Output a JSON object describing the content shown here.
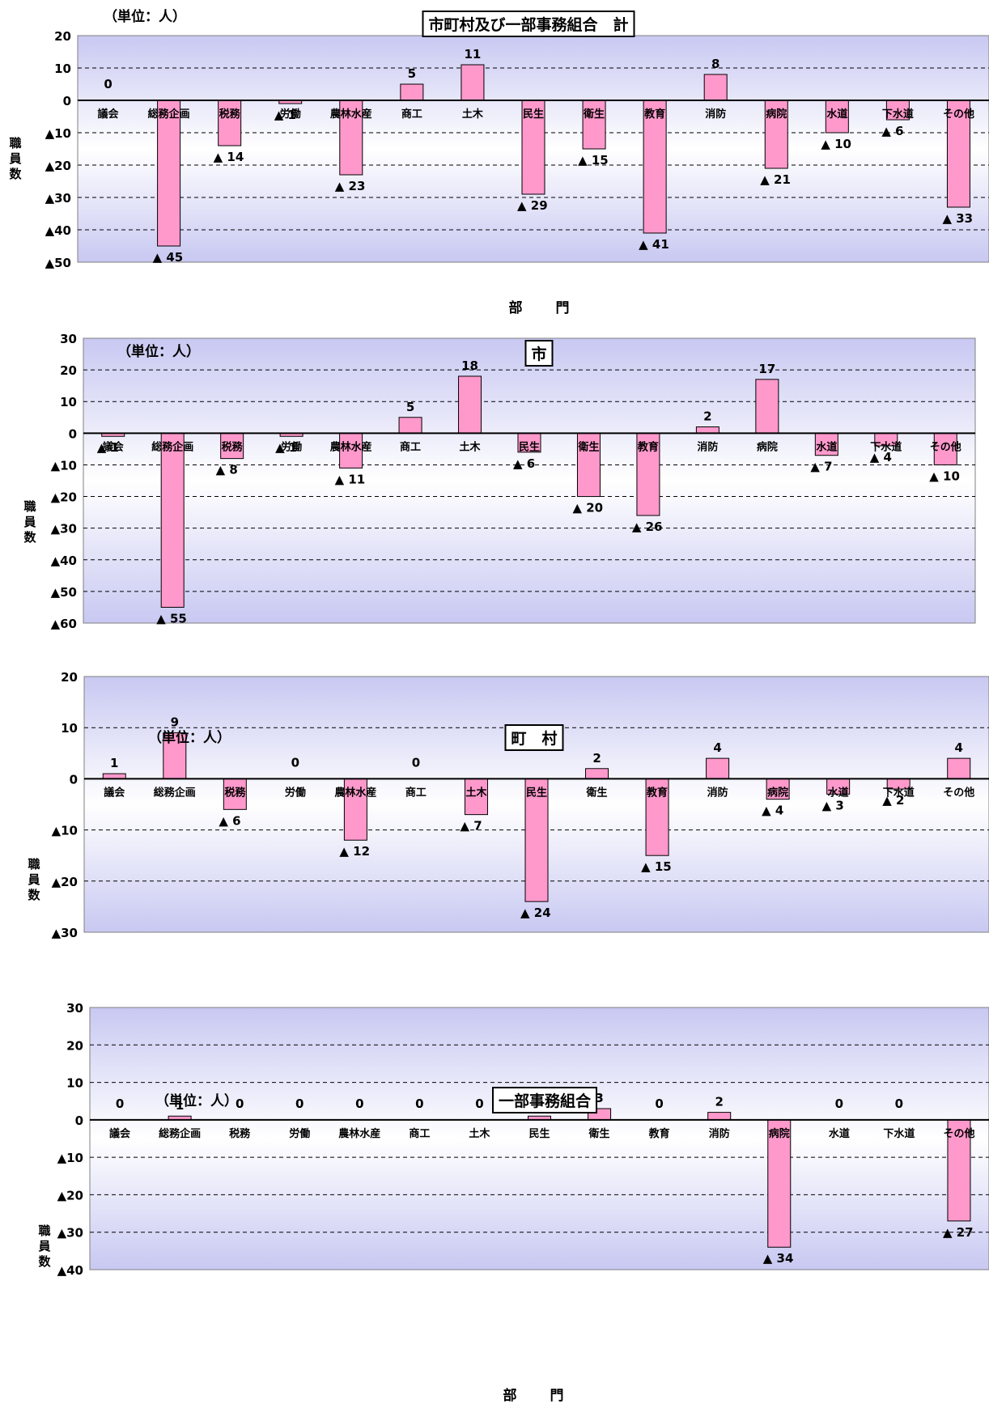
{
  "chart_data": [
    {
      "type": "bar",
      "title": "市町村及び一部事務組合　計",
      "unit": "（単位：人）",
      "xlabel": "部　門",
      "ylabel": "職員数",
      "ylim": [
        -50,
        20
      ],
      "yticks": [
        20,
        10,
        0,
        -10,
        -20,
        -30,
        -40,
        -50
      ],
      "ytick_labels": [
        "20",
        "10",
        "0",
        "▲10",
        "▲20",
        "▲30",
        "▲40",
        "▲50"
      ],
      "categories": [
        "議会",
        "総務企画",
        "税務",
        "労働",
        "農林水産",
        "商工",
        "土木",
        "民生",
        "衛生",
        "教育",
        "消防",
        "病院",
        "水道",
        "下水道",
        "その他"
      ],
      "values": [
        0,
        -45,
        -14,
        -1,
        -23,
        5,
        11,
        -29,
        -15,
        -41,
        8,
        -21,
        -10,
        -6,
        -33
      ],
      "value_labels": [
        "0",
        "▲ 45",
        "▲ 14",
        "▲ 1",
        "▲ 23",
        "5",
        "11",
        "▲ 29",
        "▲ 15",
        "▲ 41",
        "8",
        "▲ 21",
        "▲ 10",
        "▲ 6",
        "▲ 33"
      ]
    },
    {
      "type": "bar",
      "title": "市",
      "unit": "（単位：人）",
      "xlabel": "部　門",
      "ylabel": "職員数",
      "ylim": [
        -60,
        30
      ],
      "yticks": [
        30,
        20,
        10,
        0,
        -10,
        -20,
        -30,
        -40,
        -50,
        -60
      ],
      "ytick_labels": [
        "30",
        "20",
        "10",
        "0",
        "▲10",
        "▲20",
        "▲30",
        "▲40",
        "▲50",
        "▲60"
      ],
      "categories": [
        "議会",
        "総務企画",
        "税務",
        "労働",
        "農林水産",
        "商工",
        "土木",
        "民生",
        "衛生",
        "教育",
        "消防",
        "病院",
        "水道",
        "下水道",
        "その他"
      ],
      "values": [
        -1,
        -55,
        -8,
        -1,
        -11,
        5,
        18,
        -6,
        -20,
        -26,
        2,
        17,
        -7,
        -4,
        -10
      ],
      "value_labels": [
        "▲ 1",
        "▲ 55",
        "▲ 8",
        "▲ 1",
        "▲ 11",
        "5",
        "18",
        "▲ 6",
        "▲ 20",
        "▲ 26",
        "2",
        "17",
        "▲ 7",
        "▲ 4",
        "▲ 10"
      ]
    },
    {
      "type": "bar",
      "title": "町　村",
      "unit": "（単位：人）",
      "xlabel": "部　門",
      "ylabel": "職員数",
      "ylim": [
        -30,
        20
      ],
      "yticks": [
        20,
        10,
        0,
        -10,
        -20,
        -30
      ],
      "ytick_labels": [
        "20",
        "10",
        "0",
        "▲10",
        "▲20",
        "▲30"
      ],
      "categories": [
        "議会",
        "総務企画",
        "税務",
        "労働",
        "農林水産",
        "商工",
        "土木",
        "民生",
        "衛生",
        "教育",
        "消防",
        "病院",
        "水道",
        "下水道",
        "その他"
      ],
      "values": [
        1,
        9,
        -6,
        0,
        -12,
        0,
        -7,
        -24,
        2,
        -15,
        4,
        -4,
        -3,
        -2,
        4
      ],
      "value_labels": [
        "1",
        "9",
        "▲ 6",
        "0",
        "▲ 12",
        "0",
        "▲ 7",
        "▲ 24",
        "2",
        "▲ 15",
        "4",
        "▲ 4",
        "▲ 3",
        "▲ 2",
        "4"
      ]
    },
    {
      "type": "bar",
      "title": "一部事務組合",
      "unit": "（単位：人）",
      "xlabel": "部　門",
      "ylabel": "職員数",
      "ylim": [
        -40,
        30
      ],
      "yticks": [
        30,
        20,
        10,
        0,
        -10,
        -20,
        -30,
        -40
      ],
      "ytick_labels": [
        "30",
        "20",
        "10",
        "0",
        "▲10",
        "▲20",
        "▲30",
        "▲40"
      ],
      "categories": [
        "議会",
        "総務企画",
        "税務",
        "労働",
        "農林水産",
        "商工",
        "土木",
        "民生",
        "衛生",
        "教育",
        "消防",
        "病院",
        "水道",
        "下水道",
        "その他"
      ],
      "values": [
        0,
        1,
        0,
        0,
        0,
        0,
        0,
        1,
        3,
        0,
        2,
        -34,
        0,
        0,
        -27
      ],
      "value_labels": [
        "0",
        "1",
        "0",
        "0",
        "0",
        "0",
        "0",
        "1",
        "3",
        "0",
        "2",
        "▲ 34",
        "0",
        "0",
        "▲ 27"
      ]
    }
  ],
  "colors": {
    "bar_fill": "#ff99cc",
    "bar_stroke": "#000000",
    "plot_edge": "#c8c8f2",
    "plot_center": "#ffffff"
  }
}
